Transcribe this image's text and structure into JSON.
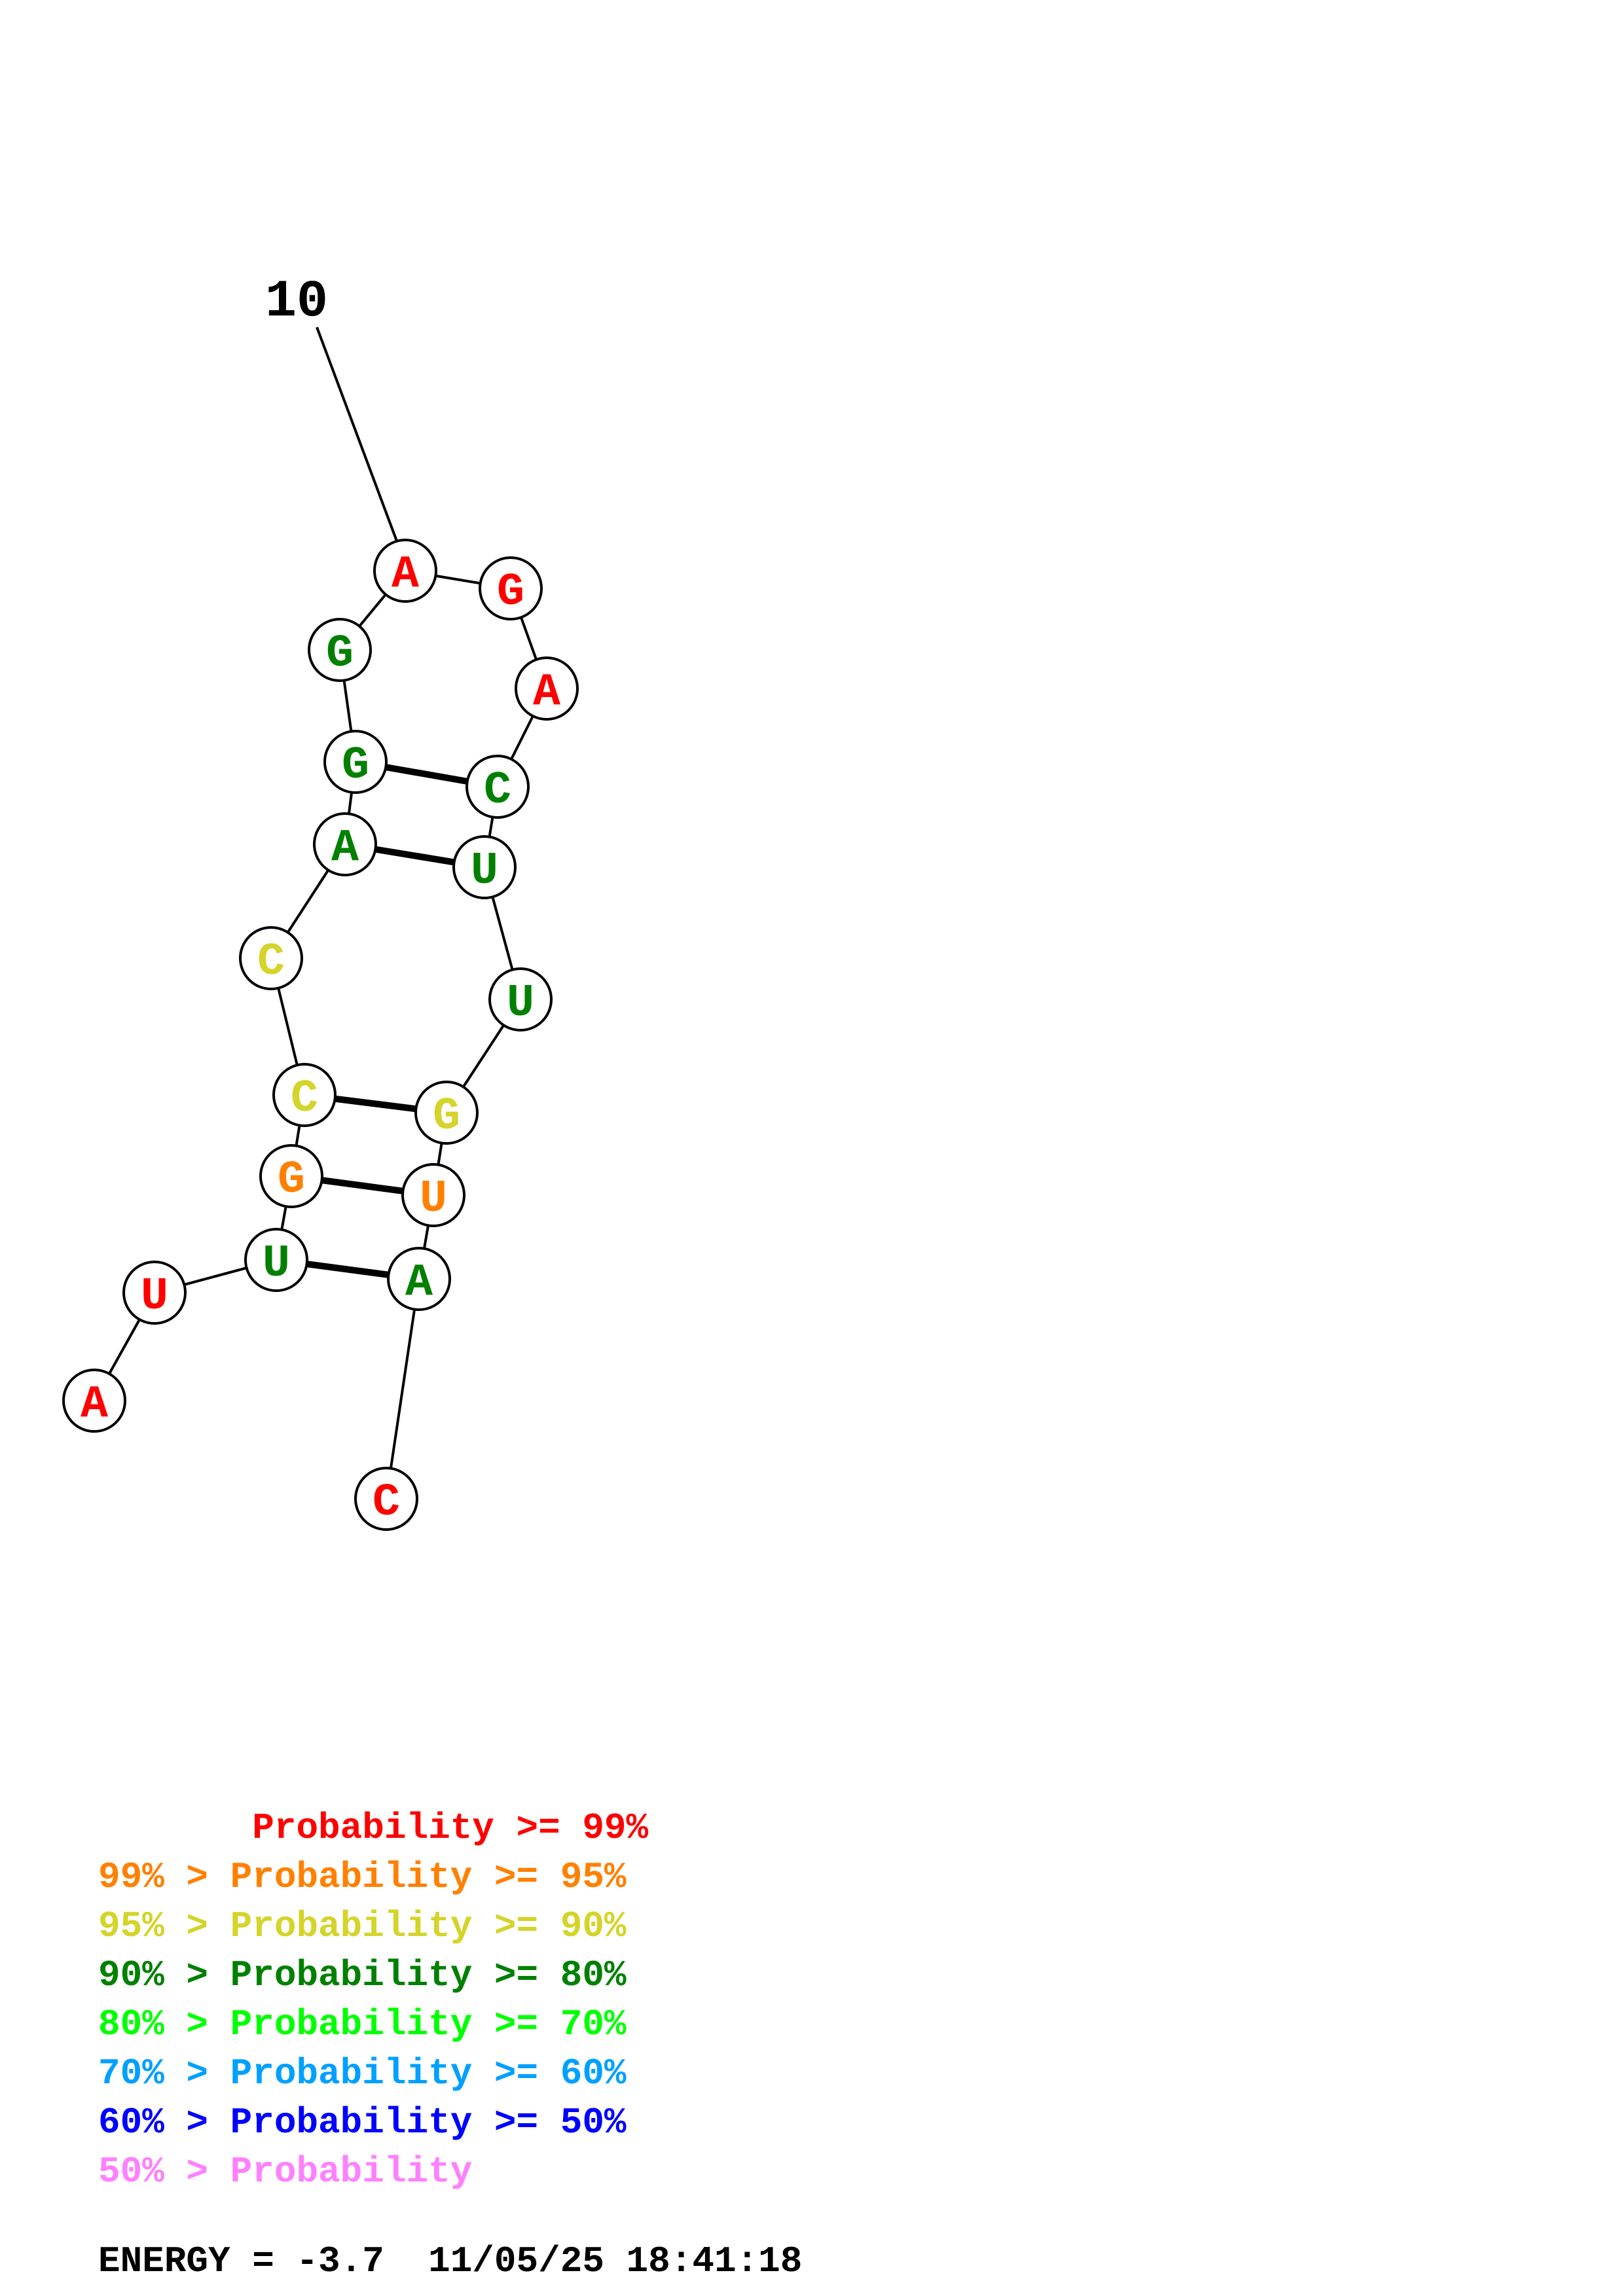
{
  "colors": {
    "p99": "#ff0000",
    "p95": "#ff8000",
    "p90": "#d4d42a",
    "p80": "#008000",
    "p70": "#00ff00",
    "p60": "#00a0ff",
    "p50": "#0000ff",
    "plow": "#ff80ff"
  },
  "position_label": "10",
  "nucleotides": [
    {
      "base": "A",
      "prob": "p99"
    },
    {
      "base": "U",
      "prob": "p99"
    },
    {
      "base": "U",
      "prob": "p80"
    },
    {
      "base": "G",
      "prob": "p95"
    },
    {
      "base": "C",
      "prob": "p90"
    },
    {
      "base": "C",
      "prob": "p90"
    },
    {
      "base": "A",
      "prob": "p80"
    },
    {
      "base": "G",
      "prob": "p80"
    },
    {
      "base": "G",
      "prob": "p80"
    },
    {
      "base": "A",
      "prob": "p99"
    },
    {
      "base": "G",
      "prob": "p99"
    },
    {
      "base": "A",
      "prob": "p99"
    },
    {
      "base": "C",
      "prob": "p80"
    },
    {
      "base": "U",
      "prob": "p80"
    },
    {
      "base": "U",
      "prob": "p80"
    },
    {
      "base": "G",
      "prob": "p90"
    },
    {
      "base": "U",
      "prob": "p95"
    },
    {
      "base": "A",
      "prob": "p80"
    },
    {
      "base": "C",
      "prob": "p99"
    }
  ],
  "pairs": [
    [
      3,
      18
    ],
    [
      4,
      17
    ],
    [
      5,
      16
    ],
    [
      7,
      14
    ],
    [
      8,
      13
    ]
  ],
  "legend": [
    {
      "prefix": "    ",
      "text": "   Probability >= 99%",
      "prob": "p99"
    },
    {
      "prefix": "99% >",
      "text": " Probability >= 95%",
      "prob": "p95"
    },
    {
      "prefix": "95% >",
      "text": " Probability >= 90%",
      "prob": "p90"
    },
    {
      "prefix": "90% >",
      "text": " Probability >= 80%",
      "prob": "p80"
    },
    {
      "prefix": "80% >",
      "text": " Probability >= 70%",
      "prob": "p70"
    },
    {
      "prefix": "70% >",
      "text": " Probability >= 60%",
      "prob": "p60"
    },
    {
      "prefix": "60% >",
      "text": " Probability >= 50%",
      "prob": "p50"
    },
    {
      "prefix": "50% >",
      "text": " Probability",
      "prob": "plow"
    }
  ],
  "footer": "ENERGY = -3.7  11/05/25 18:41:18"
}
